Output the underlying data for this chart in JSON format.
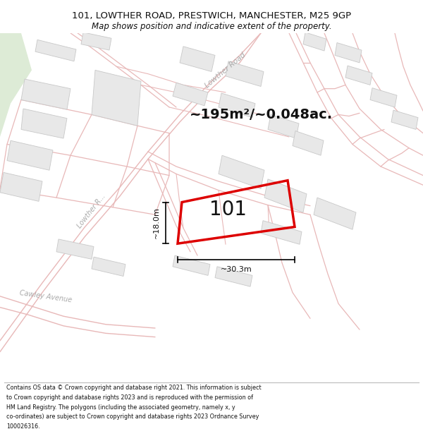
{
  "title_line1": "101, LOWTHER ROAD, PRESTWICH, MANCHESTER, M25 9GP",
  "title_line2": "Map shows position and indicative extent of the property.",
  "footer_lines": [
    "Contains OS data © Crown copyright and database right 2021. This information is subject",
    "to Crown copyright and database rights 2023 and is reproduced with the permission of",
    "HM Land Registry. The polygons (including the associated geometry, namely x, y",
    "co-ordinates) are subject to Crown copyright and database rights 2023 Ordnance Survey",
    "100026316."
  ],
  "area_text": "~195m²/~0.048ac.",
  "label_101": "101",
  "dim_width": "~30.3m",
  "dim_height": "~18.0m",
  "map_bg": "#f7f7f5",
  "road_line_color": "#e8b8b8",
  "building_fill": "#e8e8e8",
  "building_stroke": "#c8c8c8",
  "plot_stroke": "#dd0000",
  "green_fill": "#d8e8d2",
  "road_label_color": "#aaaaaa",
  "dim_color": "#111111",
  "label_color": "#111111"
}
